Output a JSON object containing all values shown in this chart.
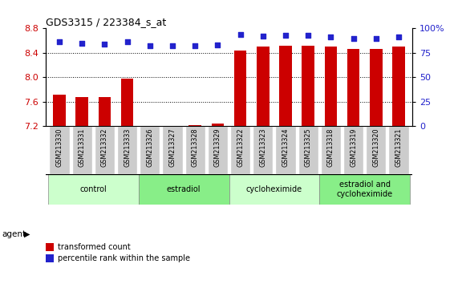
{
  "title": "GDS3315 / 223384_s_at",
  "samples": [
    "GSM213330",
    "GSM213331",
    "GSM213332",
    "GSM213333",
    "GSM213326",
    "GSM213327",
    "GSM213328",
    "GSM213329",
    "GSM213322",
    "GSM213323",
    "GSM213324",
    "GSM213325",
    "GSM213318",
    "GSM213319",
    "GSM213320",
    "GSM213321"
  ],
  "bar_values": [
    7.72,
    7.68,
    7.68,
    7.98,
    7.21,
    7.2,
    7.22,
    7.24,
    8.44,
    8.5,
    8.52,
    8.52,
    8.5,
    8.46,
    8.46,
    8.5
  ],
  "dot_values": [
    86,
    85,
    84,
    86,
    82,
    82,
    82,
    83,
    94,
    92,
    93,
    93,
    91,
    90,
    90,
    91
  ],
  "bar_color": "#cc0000",
  "dot_color": "#2222cc",
  "ylim_left": [
    7.2,
    8.8
  ],
  "ylim_right": [
    0,
    100
  ],
  "yticks_left": [
    7.2,
    7.6,
    8.0,
    8.4,
    8.8
  ],
  "yticks_right": [
    0,
    25,
    50,
    75,
    100
  ],
  "ytick_labels_right": [
    "0",
    "25",
    "50",
    "75",
    "100%"
  ],
  "grid_values": [
    7.6,
    8.0,
    8.4
  ],
  "groups": [
    {
      "label": "control",
      "start": 0,
      "end": 3
    },
    {
      "label": "estradiol",
      "start": 4,
      "end": 7
    },
    {
      "label": "cycloheximide",
      "start": 8,
      "end": 11
    },
    {
      "label": "estradiol and\ncycloheximide",
      "start": 12,
      "end": 15
    }
  ],
  "group_colors": [
    "#ccffcc",
    "#88ee88",
    "#ccffcc",
    "#88ee88"
  ],
  "xtick_bg": "#cccccc",
  "xtick_border": "#ffffff",
  "agent_label": "agent",
  "legend_bar_label": "transformed count",
  "legend_dot_label": "percentile rank within the sample",
  "tick_label_color_left": "#cc0000",
  "tick_label_color_right": "#2222cc"
}
